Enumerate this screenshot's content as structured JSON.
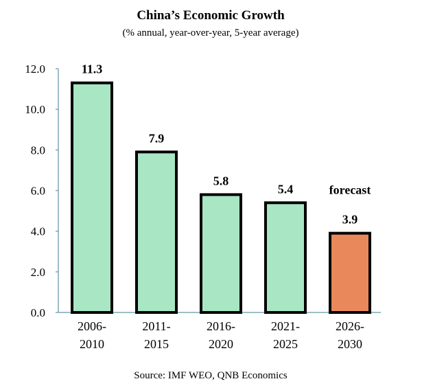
{
  "chart_data": {
    "type": "bar",
    "title": "China’s Economic Growth",
    "subtitle": "(% annual, year-over-year, 5-year average)",
    "categories": [
      [
        "2006-",
        "2010"
      ],
      [
        "2011-",
        "2015"
      ],
      [
        "2016-",
        "2020"
      ],
      [
        "2021-",
        "2025"
      ],
      [
        "2026-",
        "2030"
      ]
    ],
    "values": [
      11.3,
      7.9,
      5.8,
      5.4,
      3.9
    ],
    "value_labels": [
      "11.3",
      "7.9",
      "5.8",
      "5.4",
      "3.9"
    ],
    "forecast": [
      false,
      false,
      false,
      false,
      true
    ],
    "annotation": "forecast",
    "ylim": [
      0,
      12
    ],
    "yticks": [
      "0.0",
      "2.0",
      "4.0",
      "6.0",
      "8.0",
      "10.0",
      "12.0"
    ],
    "xlabel": "",
    "ylabel": "",
    "grid": false,
    "source": "Source: IMF WEO, QNB Economics",
    "colors": {
      "actual": "#a9e6c3",
      "forecast": "#e9885a",
      "axis": "#7ea8b2",
      "outline": "#000000"
    }
  }
}
